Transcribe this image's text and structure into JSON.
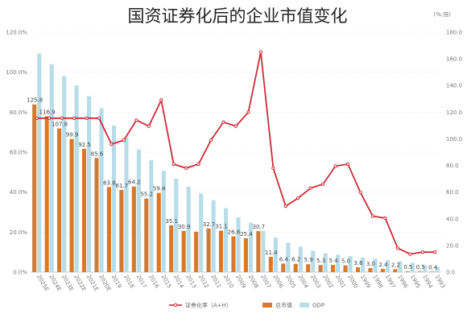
{
  "chart_data": {
    "type": "bar",
    "title": "国资证券化后的企业市值变化",
    "y_left_unit": "",
    "y_right_unit": "(%,倍)",
    "y_left_ticks": [
      "0.0%",
      "20.0%",
      "40.0%",
      "60.0%",
      "80.0%",
      "100.0%",
      "120.0%"
    ],
    "y_right_ticks": [
      "0.0",
      "20.0",
      "40.0",
      "60.0",
      "80.0",
      "100.0",
      "120.0",
      "140.0",
      "160.0",
      "180.0"
    ],
    "ylim_left": [
      0,
      120
    ],
    "ylim_right": [
      0,
      180
    ],
    "categories": [
      "2025E",
      "2024E",
      "2023E",
      "2022E",
      "2021E",
      "2020E",
      "2019",
      "2018",
      "2017",
      "2016",
      "2015",
      "2014",
      "2013",
      "2012",
      "2011",
      "2010",
      "2009",
      "2008",
      "2007",
      "2006",
      "2005",
      "2004",
      "2003",
      "2002",
      "2001",
      "2000",
      "1999",
      "1998",
      "1997",
      "1996",
      "1995",
      "1994",
      "1993"
    ],
    "series": [
      {
        "name": "总市值",
        "type": "bar",
        "axis": "right",
        "color": "#d9782a",
        "values": [
          125.8,
          116.9,
          107.8,
          99.9,
          92.5,
          85.6,
          63.8,
          61.7,
          64.2,
          55.2,
          59.4,
          35.1,
          30.9,
          30.3,
          32.7,
          31.1,
          26.8,
          25.4,
          30.7,
          11.4,
          6.4,
          6.2,
          5.9,
          5.3,
          5.4,
          5.0,
          3.6,
          3.0,
          2.4,
          2.2,
          0.5,
          0.5,
          0.4
        ],
        "labels": [
          "125.8",
          "116.9",
          "107.8",
          "99.9",
          "92.5",
          "85.6",
          "63.8",
          "61.7",
          "64.2",
          "55.2",
          "59.4",
          "35.1",
          "30.9",
          "",
          "32.7",
          "31.1",
          "26.8",
          "25.4",
          "30.7",
          "11.4",
          "6.4",
          "6.2",
          "5.9",
          "5.3",
          "5.4",
          "5.0",
          "3.6",
          "3.0",
          "2.4",
          "2.2",
          "0.5",
          "0.5",
          "0.4"
        ]
      },
      {
        "name": "GDP",
        "type": "bar",
        "axis": "right",
        "color": "#b7dde8",
        "values": [
          164.0,
          156.0,
          147.0,
          140.0,
          132.0,
          123.0,
          110.0,
          101.0,
          92.0,
          84.0,
          76.0,
          70.0,
          64.0,
          59.0,
          54.0,
          48.0,
          41.0,
          37.0,
          31.0,
          26.0,
          22.0,
          19.0,
          16.0,
          14.0,
          13.0,
          12.0,
          11.0,
          10.0,
          9.0,
          8.0,
          7.0,
          5.0,
          4.0
        ]
      },
      {
        "name": "证券化率（A+H）",
        "type": "line",
        "axis": "left",
        "color": "#cf2a38",
        "values": [
          77,
          77,
          77,
          77,
          77,
          77,
          64,
          66,
          76,
          73,
          86,
          54,
          52,
          54,
          66,
          75,
          73,
          80,
          110,
          52,
          33,
          37,
          42,
          44,
          53,
          54,
          40,
          28,
          27,
          12,
          9,
          10,
          10
        ]
      }
    ],
    "legend": [
      "证券化率（A+H）",
      "总市值",
      "GDP"
    ],
    "legend_position": "bottom",
    "grid": true
  }
}
